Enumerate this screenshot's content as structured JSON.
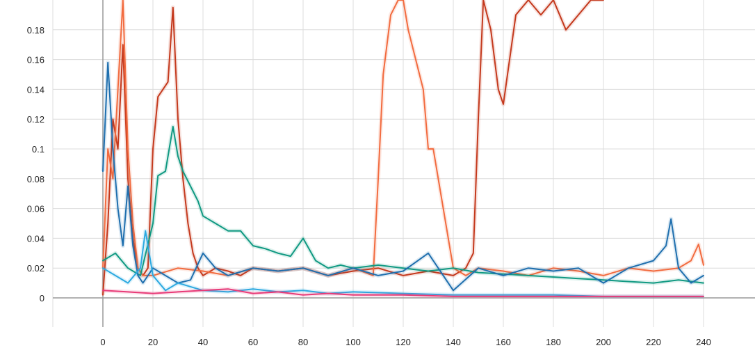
{
  "chart_data": {
    "type": "line",
    "title": "",
    "xlabel": "",
    "ylabel": "",
    "xlim": [
      -20,
      260
    ],
    "ylim": [
      -0.02,
      0.2
    ],
    "grid": true,
    "legend": "none",
    "x_ticks": [
      "0",
      "20",
      "40",
      "60",
      "80",
      "100",
      "120",
      "140",
      "160",
      "180",
      "200",
      "220",
      "240"
    ],
    "x_tick_values": [
      0,
      20,
      40,
      60,
      80,
      100,
      120,
      140,
      160,
      180,
      200,
      220,
      240
    ],
    "y_ticks": [
      "0",
      "0.02",
      "0.04",
      "0.06",
      "0.08",
      "0.1",
      "0.12",
      "0.14",
      "0.16",
      "0.18"
    ],
    "y_tick_values": [
      0,
      0.02,
      0.04,
      0.06,
      0.08,
      0.1,
      0.12,
      0.14,
      0.16,
      0.18
    ],
    "series": [
      {
        "color": "#c4391d",
        "x": [
          0,
          2,
          4,
          6,
          8,
          10,
          12,
          14,
          16,
          18,
          20,
          22,
          24,
          26,
          28,
          30,
          32,
          34,
          36,
          38,
          40,
          45,
          50,
          55,
          60,
          70,
          80,
          90,
          100,
          110,
          120,
          130,
          140,
          145,
          148,
          150,
          152,
          155,
          158,
          160,
          165,
          170,
          175,
          180,
          185,
          190,
          195,
          200
        ],
        "y": [
          0.002,
          0.05,
          0.12,
          0.1,
          0.17,
          0.08,
          0.04,
          0.02,
          0.015,
          0.02,
          0.1,
          0.135,
          0.14,
          0.145,
          0.195,
          0.12,
          0.08,
          0.05,
          0.03,
          0.02,
          0.015,
          0.02,
          0.018,
          0.015,
          0.02,
          0.018,
          0.02,
          0.015,
          0.018,
          0.02,
          0.015,
          0.018,
          0.015,
          0.02,
          0.03,
          0.12,
          0.2,
          0.18,
          0.14,
          0.13,
          0.19,
          0.2,
          0.19,
          0.2,
          0.18,
          0.19,
          0.2,
          0.2
        ]
      },
      {
        "color": "#f26b3f",
        "x": [
          0,
          2,
          4,
          6,
          8,
          10,
          12,
          14,
          16,
          20,
          30,
          40,
          50,
          60,
          70,
          80,
          90,
          100,
          108,
          110,
          112,
          115,
          118,
          120,
          122,
          125,
          128,
          130,
          132,
          135,
          138,
          140,
          145,
          150,
          160,
          170,
          180,
          190,
          200,
          210,
          220,
          230,
          235,
          238,
          240
        ],
        "y": [
          0.02,
          0.1,
          0.08,
          0.14,
          0.2,
          0.1,
          0.05,
          0.02,
          0.015,
          0.015,
          0.02,
          0.018,
          0.015,
          0.02,
          0.018,
          0.02,
          0.015,
          0.02,
          0.015,
          0.08,
          0.15,
          0.19,
          0.2,
          0.2,
          0.18,
          0.16,
          0.14,
          0.1,
          0.1,
          0.07,
          0.04,
          0.02,
          0.015,
          0.02,
          0.018,
          0.015,
          0.02,
          0.018,
          0.015,
          0.02,
          0.018,
          0.02,
          0.025,
          0.036,
          0.022
        ]
      },
      {
        "color": "#109982",
        "x": [
          0,
          5,
          10,
          15,
          20,
          22,
          25,
          28,
          30,
          32,
          35,
          38,
          40,
          45,
          50,
          55,
          60,
          65,
          70,
          75,
          80,
          85,
          90,
          95,
          100,
          110,
          120,
          130,
          140,
          150,
          160,
          170,
          180,
          190,
          200,
          210,
          220,
          230,
          240
        ],
        "y": [
          0.025,
          0.03,
          0.02,
          0.015,
          0.05,
          0.082,
          0.085,
          0.115,
          0.095,
          0.085,
          0.075,
          0.065,
          0.055,
          0.05,
          0.045,
          0.045,
          0.035,
          0.033,
          0.03,
          0.028,
          0.04,
          0.025,
          0.02,
          0.022,
          0.02,
          0.022,
          0.02,
          0.018,
          0.02,
          0.017,
          0.016,
          0.015,
          0.014,
          0.013,
          0.012,
          0.011,
          0.01,
          0.012,
          0.01
        ]
      },
      {
        "color": "#1f6fae",
        "x": [
          0,
          2,
          4,
          6,
          8,
          10,
          12,
          14,
          16,
          18,
          20,
          25,
          30,
          35,
          40,
          45,
          50,
          60,
          70,
          80,
          90,
          100,
          110,
          120,
          130,
          140,
          150,
          160,
          170,
          180,
          190,
          200,
          210,
          220,
          225,
          227,
          230,
          235,
          240
        ],
        "y": [
          0.085,
          0.158,
          0.1,
          0.06,
          0.035,
          0.075,
          0.035,
          0.015,
          0.01,
          0.015,
          0.02,
          0.015,
          0.01,
          0.012,
          0.03,
          0.02,
          0.015,
          0.02,
          0.018,
          0.02,
          0.015,
          0.02,
          0.015,
          0.018,
          0.03,
          0.005,
          0.02,
          0.015,
          0.02,
          0.018,
          0.02,
          0.01,
          0.02,
          0.025,
          0.035,
          0.053,
          0.02,
          0.01,
          0.015
        ]
      },
      {
        "color": "#2ca9e0",
        "x": [
          0,
          5,
          10,
          15,
          17,
          20,
          25,
          30,
          40,
          50,
          60,
          70,
          80,
          90,
          100,
          120,
          140,
          160,
          180,
          200,
          220,
          240
        ],
        "y": [
          0.02,
          0.015,
          0.01,
          0.02,
          0.045,
          0.015,
          0.005,
          0.01,
          0.005,
          0.004,
          0.006,
          0.004,
          0.005,
          0.003,
          0.004,
          0.003,
          0.002,
          0.002,
          0.002,
          0.001,
          0.001,
          0.001
        ]
      },
      {
        "color": "#e83a77",
        "x": [
          0,
          10,
          20,
          30,
          40,
          50,
          60,
          70,
          80,
          90,
          100,
          120,
          140,
          160,
          180,
          200,
          220,
          240
        ],
        "y": [
          0.005,
          0.004,
          0.003,
          0.004,
          0.005,
          0.006,
          0.003,
          0.004,
          0.002,
          0.003,
          0.002,
          0.002,
          0.001,
          0.001,
          0.001,
          0.001,
          0.001,
          0.001
        ]
      }
    ]
  }
}
